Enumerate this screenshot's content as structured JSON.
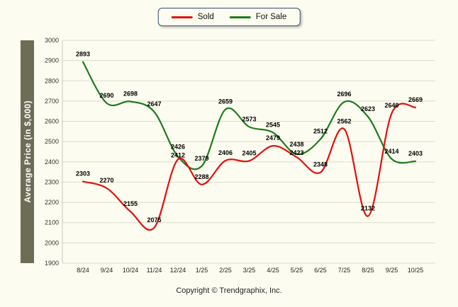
{
  "page": {
    "background": "#fdfcf0"
  },
  "legend": {
    "items": [
      {
        "label": "Sold",
        "color": "#e01010"
      },
      {
        "label": "For Sale",
        "color": "#1e7b1e"
      }
    ]
  },
  "footer": {
    "copyright": "Copyright © Trendgraphix, Inc."
  },
  "chart_data": {
    "type": "line",
    "title": "",
    "xlabel": "",
    "ylabel": "Average Price (in $,000)",
    "ylim": [
      1900,
      3000
    ],
    "ytick_step": 100,
    "grid": true,
    "legend_position": "top",
    "categories": [
      "8/24",
      "9/24",
      "10/24",
      "11/24",
      "12/24",
      "1/25",
      "2/25",
      "3/25",
      "4/25",
      "5/25",
      "6/25",
      "7/25",
      "8/25",
      "9/25",
      "10/25"
    ],
    "series": [
      {
        "name": "Sold",
        "color": "#e01010",
        "values": [
          2303,
          2270,
          2155,
          2075,
          2412,
          2288,
          2406,
          2405,
          2479,
          2423,
          2348,
          2562,
          2132,
          2640,
          2669
        ]
      },
      {
        "name": "For Sale",
        "color": "#1e7b1e",
        "values": [
          2893,
          2690,
          2698,
          2647,
          2426,
          2379,
          2659,
          2573,
          2545,
          2438,
          2512,
          2696,
          2623,
          2414,
          2403
        ]
      }
    ]
  }
}
